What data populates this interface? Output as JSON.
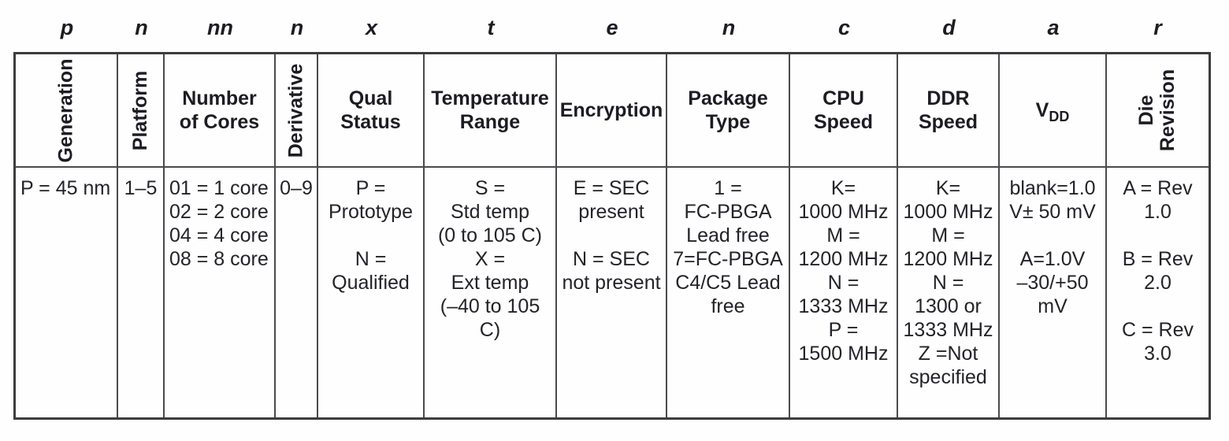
{
  "part_number_key": {
    "columns": [
      {
        "id": "generation",
        "letter": "p",
        "header": "Generation",
        "rotated": true,
        "align": "left",
        "cell": "P = 45 nm"
      },
      {
        "id": "platform",
        "letter": "n",
        "header": "Platform",
        "rotated": true,
        "align": "center",
        "cell": "1–5"
      },
      {
        "id": "number-of-cores",
        "letter": "nn",
        "header": "Number\nof Cores",
        "rotated": false,
        "align": "left",
        "cell": "01 = 1 core\n02 = 2 core\n04 = 4 core\n08 = 8 core"
      },
      {
        "id": "derivative",
        "letter": "n",
        "header": "Derivative",
        "rotated": true,
        "align": "center",
        "cell": "0–9"
      },
      {
        "id": "qual-status",
        "letter": "x",
        "header": "Qual\nStatus",
        "rotated": false,
        "align": "center",
        "cell": "P =\nPrototype\n\nN =\nQualified"
      },
      {
        "id": "temperature-range",
        "letter": "t",
        "header": "Temperature\nRange",
        "rotated": false,
        "align": "center",
        "cell": "S =\nStd temp\n(0 to 105 C)\nX =\nExt temp\n(–40 to 105\nC)"
      },
      {
        "id": "encryption",
        "letter": "e",
        "header": "Encryption",
        "rotated": false,
        "align": "center",
        "cell": "E = SEC\npresent\n\nN = SEC\nnot present"
      },
      {
        "id": "package-type",
        "letter": "n",
        "header": "Package\nType",
        "rotated": false,
        "align": "center",
        "cell": "1 =\nFC-PBGA\nLead free\n7=FC-PBGA\nC4/C5 Lead\nfree"
      },
      {
        "id": "cpu-speed",
        "letter": "c",
        "header": "CPU\nSpeed",
        "rotated": false,
        "align": "center",
        "cell": "K=\n1000 MHz\nM =\n1200 MHz\nN =\n1333 MHz\nP =\n1500 MHz"
      },
      {
        "id": "ddr-speed",
        "letter": "d",
        "header": "DDR\nSpeed",
        "rotated": false,
        "align": "center",
        "cell": "K=\n1000 MHz\nM =\n1200 MHz\nN =\n1300 or\n1333 MHz\nZ =Not\nspecified"
      },
      {
        "id": "vdd",
        "letter": "a",
        "header": "VDD",
        "header_main": "V",
        "header_subscript": "DD",
        "rotated": false,
        "align": "center",
        "cell": "blank=1.0\nV± 50 mV\n\nA=1.0V\n–30/+50\nmV"
      },
      {
        "id": "die-revision",
        "letter": "r",
        "header": "Die\nRevision",
        "rotated": true,
        "align": "center",
        "cell": "A = Rev\n1.0\n\nB = Rev\n2.0\n\nC = Rev\n3.0"
      }
    ]
  }
}
